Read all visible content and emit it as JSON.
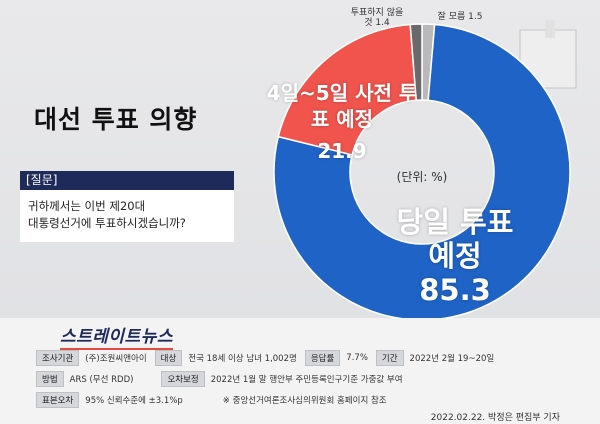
{
  "chart_data": {
    "type": "donut",
    "title": "대선 투표 의향",
    "unit": "(단위: %)",
    "categories": [
      "잘 모름",
      "당일 투표 예정",
      "4일~5일 사전 투표 예정",
      "투표하지 않을 것"
    ],
    "values": [
      1.5,
      85.3,
      21.9,
      1.4
    ],
    "colors": [
      "#b9b9bb",
      "#1f63c6",
      "#f0544d",
      "#6a6a6c"
    ]
  },
  "question": {
    "header": "[질문]",
    "lines": [
      "귀하께서는 이번 제20대",
      "대통령선거에 투표하시겠습니까?"
    ]
  },
  "logo": "스트레이트뉴스",
  "survey_info": [
    [
      "조사기관",
      "(주)조원씨앤아이",
      "대상",
      "전국 18세 이상 남녀 1,002명",
      "응답률",
      "7.7%",
      "기간",
      "2022년 2월 19~20일"
    ],
    [
      "방법",
      "ARS (무선 RDD)",
      "오차보정",
      "2022년 1월 말 행안부 주민등록인구기준 가중값 부여"
    ],
    [
      "표본오차",
      "95% 신뢰수준에 ±3.1%p",
      "※ 중앙선거여론조사심의위원회 홈페이지 참조"
    ]
  ],
  "footer": "2022.02.22. 박정은 편집부 기자"
}
